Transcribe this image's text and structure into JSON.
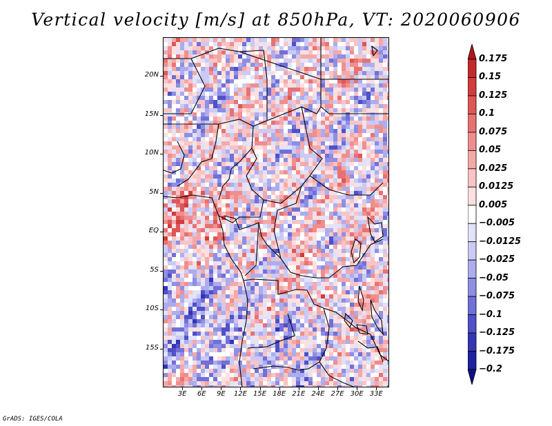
{
  "title": "Vertical velocity [m/s] at 850hPa, VT: 2020060906",
  "footer": "GrADS: IGES/COLA",
  "map": {
    "variable": "Vertical velocity",
    "units": "m/s",
    "level": "850hPa",
    "valid_time": "2020060906",
    "lat_labels": [
      "20N",
      "15N",
      "10N",
      "5N",
      "EQ",
      "5S",
      "10S",
      "15S"
    ],
    "lon_labels": [
      "3E",
      "6E",
      "9E",
      "12E",
      "15E",
      "18E",
      "21E",
      "24E",
      "27E",
      "30E",
      "33E"
    ],
    "lat_range": [
      -20,
      25
    ],
    "lon_range": [
      0,
      35
    ]
  },
  "colorbar": {
    "labels": [
      "0.175",
      "0.15",
      "0.125",
      "0.1",
      "0.075",
      "0.05",
      "0.025",
      "0.0125",
      "0.005",
      "−0.005",
      "−0.0125",
      "−0.025",
      "−0.05",
      "−0.075",
      "−0.1",
      "−0.125",
      "−0.175",
      "−0.2"
    ],
    "colors": [
      "#b01818",
      "#c42a2a",
      "#d23c3c",
      "#de5656",
      "#e87272",
      "#f08e8e",
      "#f5a8a8",
      "#f9c4c4",
      "#fce0e0",
      "#ffffff",
      "#e2e2fa",
      "#cacaf4",
      "#acacee",
      "#8e8ee4",
      "#7070d8",
      "#5050c8",
      "#3434b4",
      "#2020a0",
      "#10108a"
    ]
  }
}
